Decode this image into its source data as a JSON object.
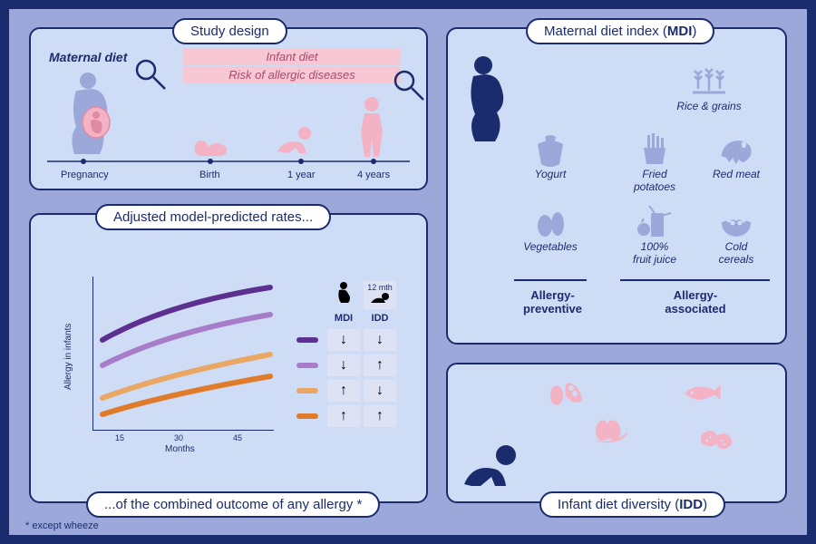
{
  "panels": {
    "study": {
      "title": "Study design",
      "maternal": "Maternal diet",
      "infant": "Infant diet",
      "risk": "Risk of allergic diseases",
      "timeline": [
        "Pregnancy",
        "Birth",
        "1 year",
        "4 years"
      ]
    },
    "rates": {
      "title_top": "Adjusted model-predicted rates...",
      "title_bottom": "...of the combined outcome of any allergy *",
      "y": "Allergy in infants",
      "x": "Months",
      "xticks": [
        "15",
        "30",
        "45"
      ],
      "col1": "MDI",
      "col2": "IDD",
      "sub2": "12 mth",
      "curve_colors": [
        "#5d2f91",
        "#a77dca",
        "#e9a763",
        "#e07b2a"
      ],
      "arrows": [
        [
          "↓",
          "↓"
        ],
        [
          "↓",
          "↑"
        ],
        [
          "↑",
          "↓"
        ],
        [
          "↑",
          "↑"
        ]
      ]
    },
    "mdi": {
      "title_pre": "Maternal diet index (",
      "title_bold": "MDI",
      "title_post": ")",
      "items": [
        {
          "t": "Yogurt"
        },
        {
          "t": "Vegetables"
        },
        {
          "t": "Rice & grains"
        },
        {
          "t": "Fried\npotatoes"
        },
        {
          "t": "Red meat"
        },
        {
          "t": "100%\nfruit juice"
        },
        {
          "t": "Cold\ncereals"
        }
      ],
      "left": "Allergy-\npreventive",
      "right": "Allergy-\nassociated"
    },
    "idd": {
      "title_pre": "Infant diet diversity (",
      "title_bold": "IDD",
      "title_post": ")"
    }
  },
  "footnote": "*  except wheeze",
  "colors": {
    "border": "#1b2c6e",
    "panel": "#cfdcf5",
    "bg": "#9ba8d9",
    "pink": "#f7c7d4",
    "pinkfill": "#f4b3c4",
    "iconfill": "#9ba8d9"
  }
}
